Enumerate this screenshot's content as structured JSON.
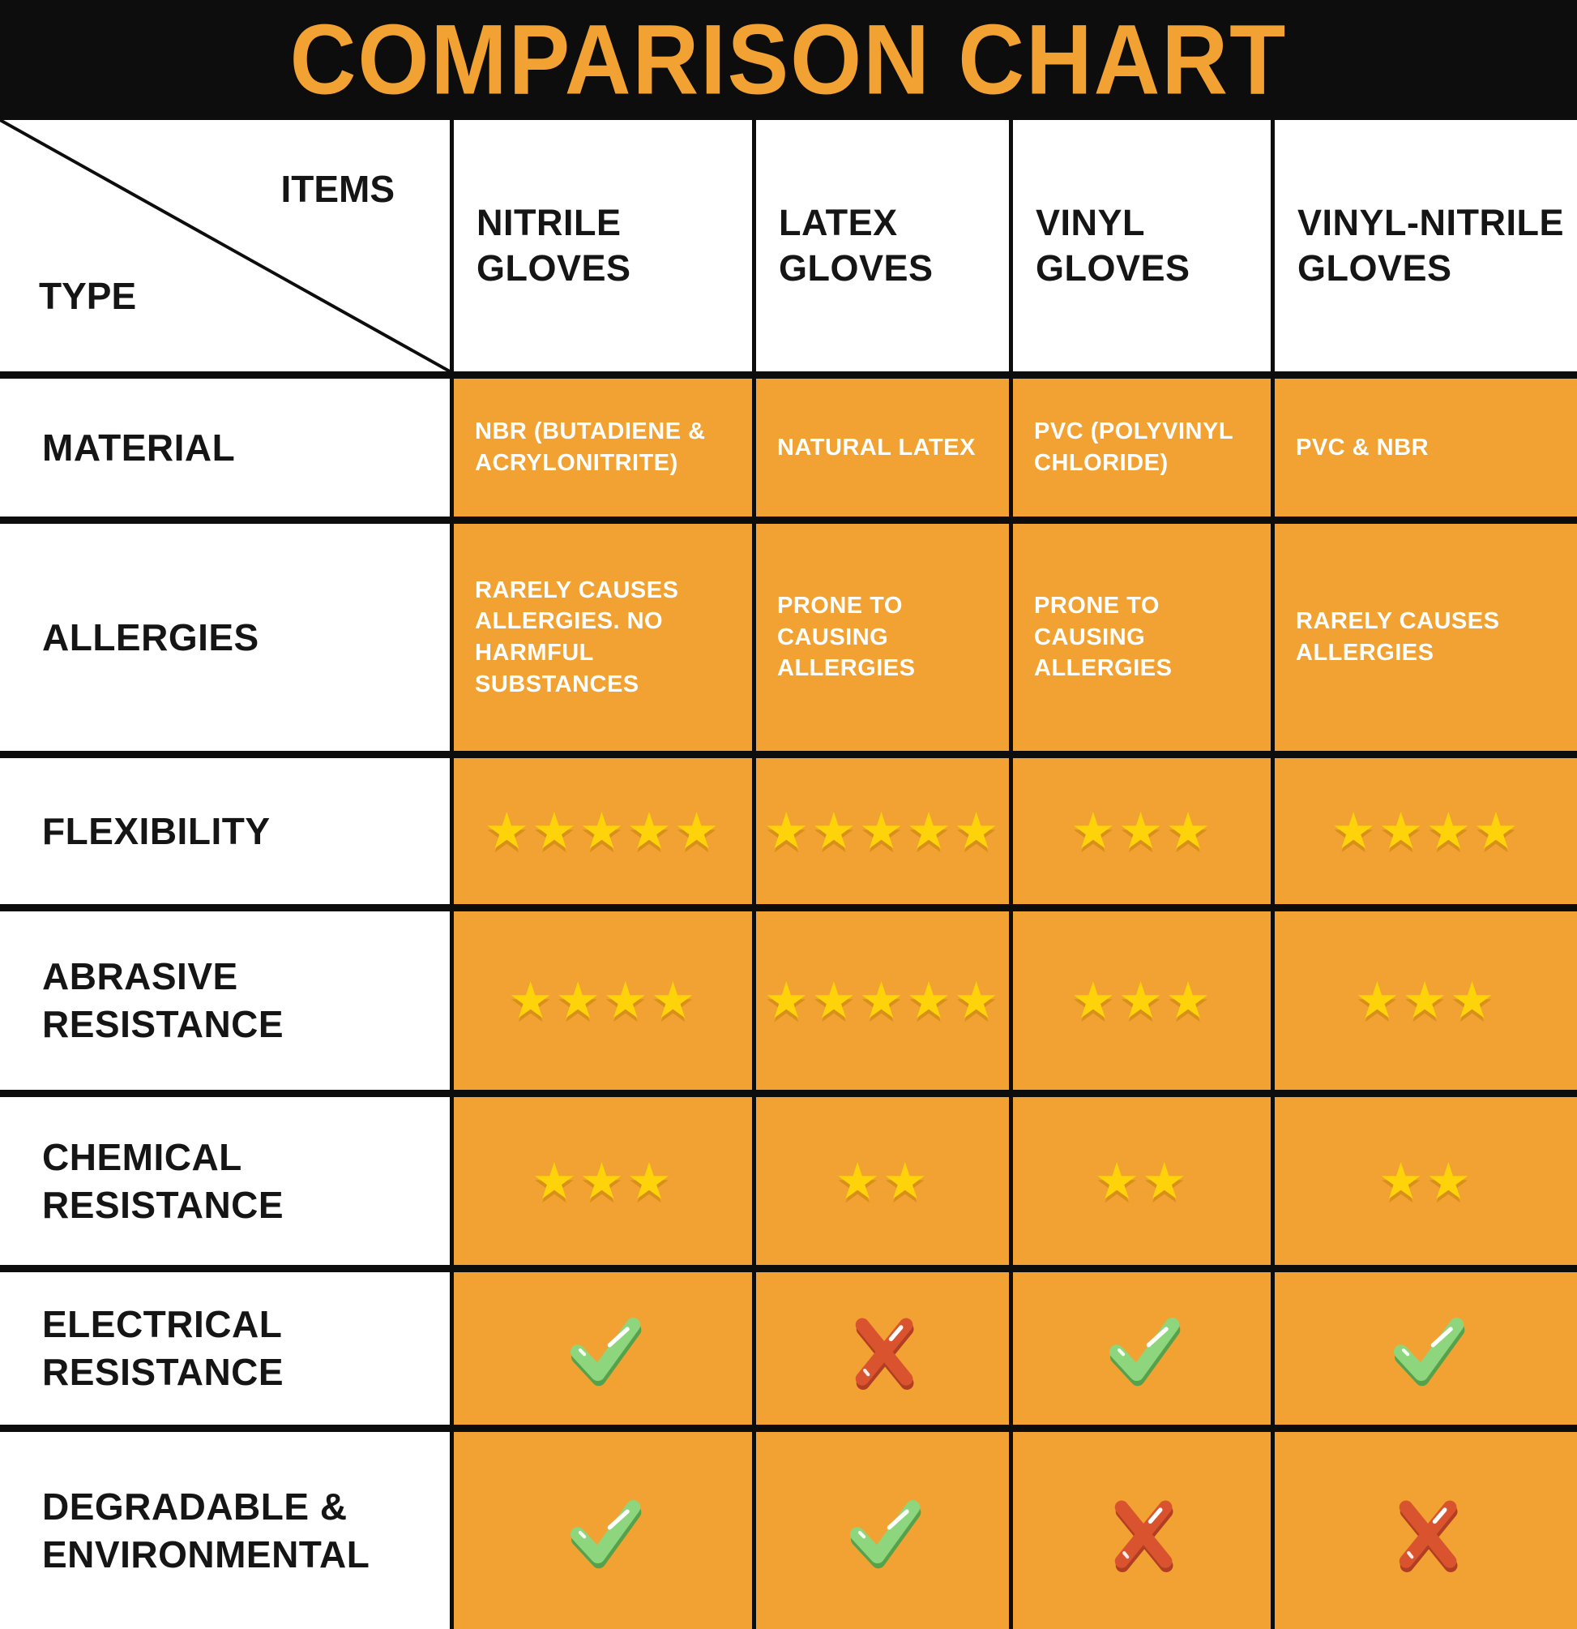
{
  "title": "COMPARISON CHART",
  "corner": {
    "top_label": "ITEMS",
    "bottom_label": "TYPE"
  },
  "colors": {
    "accent_orange": "#F1A232",
    "band_black": "#0D0D0D",
    "star_yellow": "#FFD30A",
    "check_green": "#8ED67E",
    "cross_red": "#D9532F"
  },
  "icons": {
    "pass": "check-icon",
    "fail": "cross-icon",
    "rating": "star-icon"
  },
  "chart_data": {
    "type": "table",
    "title": "COMPARISON CHART",
    "columns": [
      "NITRILE GLOVES",
      "LATEX GLOVES",
      "VINYL GLOVES",
      "VINYL-NITRILE GLOVES"
    ],
    "rows": [
      {
        "key": "material",
        "label": "MATERIAL",
        "type": "text",
        "values": [
          "NBR (BUTADIENE & ACRYLONITRITE)",
          "NATURAL LATEX",
          "PVC (POLYVINYL CHLORIDE)",
          "PVC & NBR"
        ]
      },
      {
        "key": "allergies",
        "label": "ALLERGIES",
        "type": "text",
        "values": [
          "RARELY CAUSES ALLERGIES. NO HARMFUL SUBSTANCES",
          "PRONE TO CAUSING ALLERGIES",
          "PRONE TO CAUSING ALLERGIES",
          "RARELY CAUSES ALLERGIES"
        ]
      },
      {
        "key": "flexibility",
        "label": "FLEXIBILITY",
        "type": "stars",
        "values": [
          5,
          5,
          3,
          4
        ]
      },
      {
        "key": "abrasive-resistance",
        "label": "ABRASIVE RESISTANCE",
        "type": "stars",
        "values": [
          4,
          5,
          3,
          3
        ]
      },
      {
        "key": "chemical-resistance",
        "label": "CHEMICAL RESISTANCE",
        "type": "stars",
        "values": [
          3,
          2,
          2,
          2
        ]
      },
      {
        "key": "electrical-resistance",
        "label": "ELECTRICAL RESISTANCE",
        "type": "boolean",
        "values": [
          "check",
          "cross",
          "check",
          "check"
        ]
      },
      {
        "key": "degradable-environmental",
        "label": "DEGRADABLE & ENVIRONMENTAL",
        "type": "boolean",
        "values": [
          "check",
          "check",
          "cross",
          "cross"
        ]
      }
    ]
  }
}
